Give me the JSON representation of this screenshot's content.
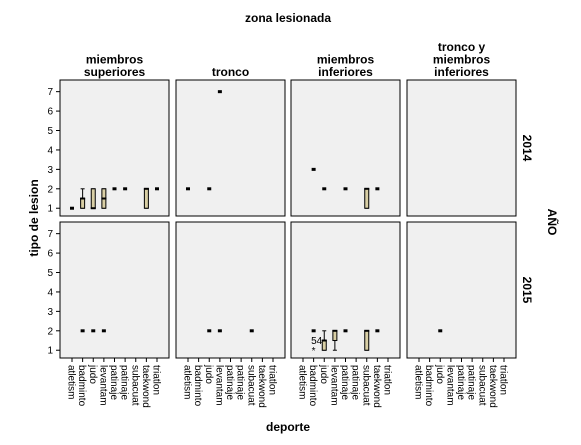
{
  "chart_data": {
    "type": "boxplot",
    "title": "zona lesionada",
    "xlabel": "deporte",
    "ylabel": "tipo de lesion",
    "row_label": "AÑO",
    "columns": [
      "miembros superiores",
      "tronco",
      "miembros inferiores",
      "tronco y miembros inferiores"
    ],
    "rows": [
      "2014",
      "2015"
    ],
    "categories": [
      "atletism",
      "badminto",
      "judo",
      "levantam",
      "patinaje",
      "patinaje",
      "subacuat",
      "taekwond",
      "triatlon"
    ],
    "yticks": [
      1,
      2,
      3,
      4,
      5,
      6,
      7
    ],
    "ylim": [
      0.6,
      7.6
    ],
    "panels": [
      {
        "column": "miembros superiores",
        "row": "2014",
        "boxes": [
          {
            "cat": 0,
            "min": 1,
            "q1": 1,
            "median": 1,
            "q3": 1,
            "max": 1
          },
          {
            "cat": 1,
            "min": 1,
            "q1": 1,
            "median": 1.5,
            "q3": 1.5,
            "max": 2
          },
          {
            "cat": 2,
            "min": 1,
            "q1": 1,
            "median": 1,
            "q3": 2,
            "max": 2
          },
          {
            "cat": 3,
            "min": 1,
            "q1": 1,
            "median": 1.5,
            "q3": 2,
            "max": 2
          },
          {
            "cat": 4,
            "min": 2,
            "q1": 2,
            "median": 2,
            "q3": 2,
            "max": 2
          },
          {
            "cat": 5,
            "min": 2,
            "q1": 2,
            "median": 2,
            "q3": 2,
            "max": 2
          },
          {
            "cat": 7,
            "min": 1,
            "q1": 1,
            "median": 2,
            "q3": 2,
            "max": 2
          },
          {
            "cat": 8,
            "min": 2,
            "q1": 2,
            "median": 2,
            "q3": 2,
            "max": 2
          }
        ],
        "outliers": []
      },
      {
        "column": "tronco",
        "row": "2014",
        "boxes": [
          {
            "cat": 0,
            "min": 2,
            "q1": 2,
            "median": 2,
            "q3": 2,
            "max": 2
          },
          {
            "cat": 2,
            "min": 2,
            "q1": 2,
            "median": 2,
            "q3": 2,
            "max": 2
          },
          {
            "cat": 3,
            "min": 7,
            "q1": 7,
            "median": 7,
            "q3": 7,
            "max": 7
          }
        ],
        "outliers": []
      },
      {
        "column": "miembros inferiores",
        "row": "2014",
        "boxes": [
          {
            "cat": 1,
            "min": 3,
            "q1": 3,
            "median": 3,
            "q3": 3,
            "max": 3
          },
          {
            "cat": 2,
            "min": 2,
            "q1": 2,
            "median": 2,
            "q3": 2,
            "max": 2
          },
          {
            "cat": 4,
            "min": 2,
            "q1": 2,
            "median": 2,
            "q3": 2,
            "max": 2
          },
          {
            "cat": 6,
            "min": 1,
            "q1": 1,
            "median": 2,
            "q3": 2,
            "max": 2
          },
          {
            "cat": 7,
            "min": 2,
            "q1": 2,
            "median": 2,
            "q3": 2,
            "max": 2
          }
        ],
        "outliers": []
      },
      {
        "column": "tronco y miembros inferiores",
        "row": "2014",
        "boxes": [],
        "outliers": []
      },
      {
        "column": "miembros superiores",
        "row": "2015",
        "boxes": [
          {
            "cat": 1,
            "min": 2,
            "q1": 2,
            "median": 2,
            "q3": 2,
            "max": 2
          },
          {
            "cat": 2,
            "min": 2,
            "q1": 2,
            "median": 2,
            "q3": 2,
            "max": 2
          },
          {
            "cat": 3,
            "min": 2,
            "q1": 2,
            "median": 2,
            "q3": 2,
            "max": 2
          }
        ],
        "outliers": []
      },
      {
        "column": "tronco",
        "row": "2015",
        "boxes": [
          {
            "cat": 2,
            "min": 2,
            "q1": 2,
            "median": 2,
            "q3": 2,
            "max": 2
          },
          {
            "cat": 3,
            "min": 2,
            "q1": 2,
            "median": 2,
            "q3": 2,
            "max": 2
          },
          {
            "cat": 6,
            "min": 2,
            "q1": 2,
            "median": 2,
            "q3": 2,
            "max": 2
          }
        ],
        "outliers": []
      },
      {
        "column": "miembros inferiores",
        "row": "2015",
        "boxes": [
          {
            "cat": 1,
            "min": 2,
            "q1": 2,
            "median": 2,
            "q3": 2,
            "max": 2
          },
          {
            "cat": 2,
            "min": 1,
            "q1": 1,
            "median": 1.5,
            "q3": 1.5,
            "max": 2
          },
          {
            "cat": 3,
            "min": 1,
            "q1": 1.5,
            "median": 2,
            "q3": 2,
            "max": 2
          },
          {
            "cat": 4,
            "min": 2,
            "q1": 2,
            "median": 2,
            "q3": 2,
            "max": 2
          },
          {
            "cat": 6,
            "min": 1,
            "q1": 1,
            "median": 2,
            "q3": 2,
            "max": 2
          },
          {
            "cat": 7,
            "min": 2,
            "q1": 2,
            "median": 2,
            "q3": 2,
            "max": 2
          }
        ],
        "outliers": [
          {
            "cat": 1,
            "value": 1,
            "marker": "*"
          },
          {
            "cat": 2,
            "value": 1.5,
            "label": "54"
          }
        ]
      },
      {
        "column": "tronco y miembros inferiores",
        "row": "2015",
        "boxes": [
          {
            "cat": 2,
            "min": 2,
            "q1": 2,
            "median": 2,
            "q3": 2,
            "max": 2
          }
        ],
        "outliers": []
      }
    ],
    "box_color": "#d9cfa5",
    "panel_background": "#f0f0f0",
    "grid": false
  }
}
